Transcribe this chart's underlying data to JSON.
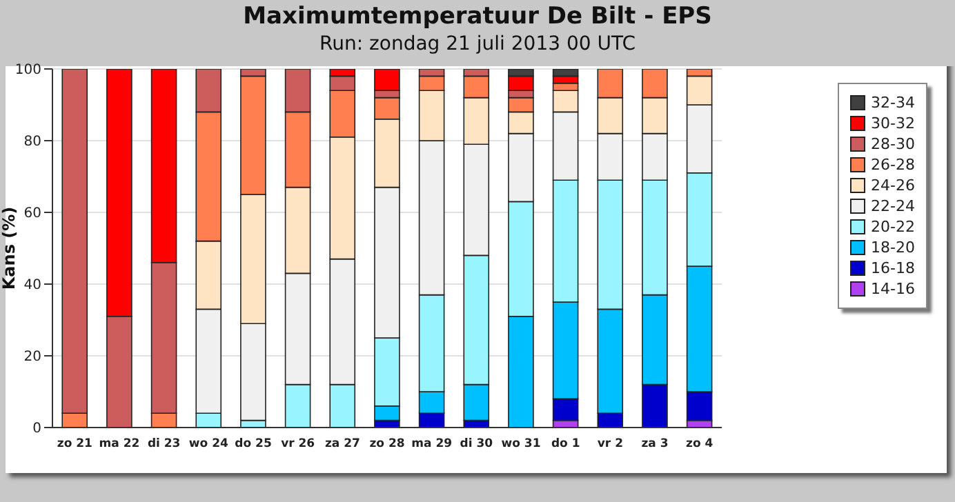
{
  "chart_data": {
    "type": "bar",
    "title": "Maximumtemperatuur De Bilt - EPS",
    "subtitle": "Run: zondag 21 juli 2013   00 UTC",
    "ylabel": "Kans (%)",
    "categories": [
      "zo 21",
      "ma 22",
      "di 23",
      "wo 24",
      "do 25",
      "vr 26",
      "za 27",
      "zo 28",
      "ma 29",
      "di 30",
      "wo 31",
      "do  1",
      "vr  2",
      "za  3",
      "zo  4"
    ],
    "stacked": true,
    "ylim": [
      0,
      100
    ],
    "yticks": [
      0,
      20,
      40,
      60,
      80,
      100
    ],
    "grid": "y",
    "legend": "right",
    "series": [
      {
        "name": "14-16",
        "color": "#b040f0",
        "values": [
          0,
          0,
          0,
          0,
          0,
          0,
          0,
          0,
          0,
          0,
          0,
          2,
          0,
          0,
          2
        ]
      },
      {
        "name": "16-18",
        "color": "#0000cd",
        "values": [
          0,
          0,
          0,
          0,
          0,
          0,
          0,
          2,
          4,
          2,
          0,
          6,
          4,
          12,
          8
        ]
      },
      {
        "name": "18-20",
        "color": "#00bfff",
        "values": [
          0,
          0,
          0,
          0,
          0,
          0,
          0,
          4,
          6,
          10,
          31,
          27,
          29,
          25,
          35
        ]
      },
      {
        "name": "20-22",
        "color": "#98f5ff",
        "values": [
          0,
          0,
          0,
          4,
          2,
          12,
          12,
          19,
          27,
          36,
          32,
          34,
          36,
          32,
          26
        ]
      },
      {
        "name": "22-24",
        "color": "#f0f0f0",
        "values": [
          0,
          0,
          0,
          29,
          27,
          31,
          35,
          42,
          43,
          31,
          19,
          19,
          13,
          13,
          19
        ]
      },
      {
        "name": "24-26",
        "color": "#ffe4c4",
        "values": [
          0,
          0,
          0,
          19,
          36,
          24,
          34,
          19,
          14,
          13,
          6,
          6,
          10,
          10,
          8
        ]
      },
      {
        "name": "26-28",
        "color": "#ff7f50",
        "values": [
          4,
          0,
          4,
          36,
          33,
          21,
          13,
          6,
          4,
          6,
          4,
          2,
          8,
          8,
          2
        ]
      },
      {
        "name": "28-30",
        "color": "#cd5c5c",
        "values": [
          96,
          31,
          42,
          12,
          2,
          12,
          4,
          2,
          2,
          2,
          2,
          0,
          0,
          0,
          0
        ]
      },
      {
        "name": "30-32",
        "color": "#ff0000",
        "values": [
          0,
          69,
          54,
          0,
          0,
          0,
          2,
          6,
          0,
          0,
          4,
          2,
          0,
          0,
          0
        ]
      },
      {
        "name": "32-34",
        "color": "#404040",
        "values": [
          0,
          0,
          0,
          0,
          0,
          0,
          0,
          0,
          0,
          0,
          2,
          2,
          0,
          0,
          0
        ]
      }
    ]
  }
}
